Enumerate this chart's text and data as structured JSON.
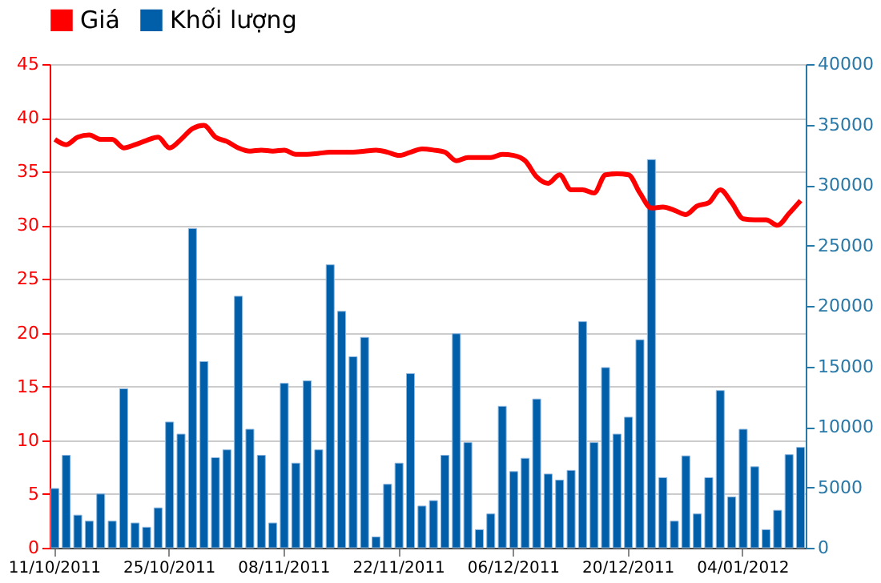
{
  "chart_data": {
    "type": "bar",
    "categories": [
      "11/10/2011",
      null,
      null,
      null,
      null,
      null,
      null,
      null,
      null,
      null,
      "25/10/2011",
      null,
      null,
      null,
      null,
      null,
      null,
      null,
      null,
      null,
      "08/11/2011",
      null,
      null,
      null,
      null,
      null,
      null,
      null,
      null,
      null,
      "22/11/2011",
      null,
      null,
      null,
      null,
      null,
      null,
      null,
      null,
      null,
      "06/12/2011",
      null,
      null,
      null,
      null,
      null,
      null,
      null,
      null,
      null,
      "20/12/2011",
      null,
      null,
      null,
      null,
      null,
      null,
      null,
      null,
      null,
      "04/01/2012",
      null,
      null,
      null,
      null,
      null
    ],
    "series": [
      {
        "name": "Khối lượng",
        "axis": "y2",
        "color": "#005fa8",
        "values": [
          4900,
          7650,
          2700,
          2200,
          4450,
          2200,
          13150,
          2050,
          1700,
          3300,
          10400,
          9400,
          26400,
          15400,
          7450,
          8100,
          20800,
          9800,
          7650,
          2050,
          13600,
          7000,
          13800,
          8100,
          23400,
          19550,
          15800,
          17400,
          900,
          5250,
          7000,
          14400,
          3450,
          3900,
          7650,
          17700,
          8700,
          1500,
          2800,
          11700,
          6300,
          7400,
          12300,
          6100,
          5600,
          6400,
          18700,
          8700,
          14900,
          9400,
          10800,
          17200,
          32100,
          5800,
          2200,
          7600,
          2800,
          5800,
          13000,
          4200,
          9800,
          6700,
          1500,
          3100,
          7700,
          8300
        ]
      },
      {
        "name": "Giá",
        "type": "line",
        "color": "#ff0000",
        "values": [
          38.0,
          37.5,
          38.2,
          38.4,
          38.0,
          38.0,
          37.2,
          37.5,
          37.9,
          38.2,
          37.2,
          38.0,
          39.0,
          39.3,
          38.2,
          37.8,
          37.2,
          36.9,
          37.0,
          36.9,
          37.0,
          36.6,
          36.6,
          36.7,
          36.8,
          36.8,
          36.8,
          36.9,
          37.0,
          36.8,
          36.5,
          36.8,
          37.1,
          37.0,
          36.8,
          36.0,
          36.3,
          36.3,
          36.3,
          36.6,
          36.5,
          36.0,
          34.5,
          33.9,
          34.7,
          33.3,
          33.3,
          33.0,
          34.7,
          34.8,
          34.7,
          33.0,
          31.6,
          31.7,
          31.4,
          31.0,
          31.8,
          32.1,
          33.3,
          32.1,
          30.6,
          30.5,
          30.5,
          30.0,
          31.1,
          32.3
        ]
      }
    ],
    "ylim": [
      0,
      45
    ],
    "yticks": [
      0,
      5,
      10,
      15,
      20,
      25,
      30,
      35,
      40,
      45
    ],
    "y2lim": [
      0,
      40000
    ],
    "y2ticks": [
      0,
      5000,
      10000,
      15000,
      20000,
      25000,
      30000,
      35000,
      40000
    ],
    "grid": "y",
    "legend": "top"
  }
}
